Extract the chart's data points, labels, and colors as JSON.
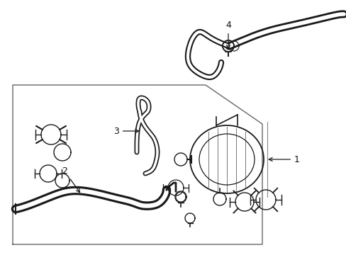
{
  "bg_color": "#ffffff",
  "line_color": "#1a1a1a",
  "box_color": "#555555",
  "label_color": "#111111",
  "figsize": [
    4.89,
    3.6
  ],
  "dpi": 100
}
